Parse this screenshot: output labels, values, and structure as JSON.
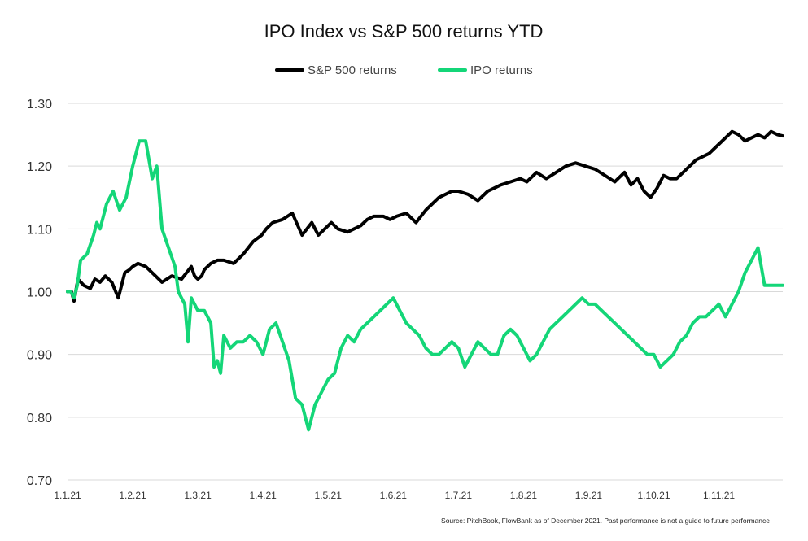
{
  "chart_data": {
    "type": "line",
    "title": "IPO Index vs S&P 500 returns YTD",
    "xlabel": "",
    "ylabel": "",
    "ylim": [
      0.7,
      1.3
    ],
    "y_ticks": [
      0.7,
      0.8,
      0.9,
      1.0,
      1.1,
      1.2,
      1.3
    ],
    "y_tick_labels": [
      "0.70",
      "0.80",
      "0.90",
      "1.00",
      "1.10",
      "1.20",
      "1.30"
    ],
    "x_tick_labels": [
      "1.1.21",
      "1.2.21",
      "1.3.21",
      "1.4.21",
      "1.5.21",
      "1.6.21",
      "1.7.21",
      "1.8.21",
      "1.9.21",
      "1.10.21",
      "1.11.21"
    ],
    "x_unit": "months since 1 Jan 2021",
    "xlim": [
      0,
      10.98
    ],
    "grid": true,
    "legend_position": "top-center",
    "series": [
      {
        "name": "S&P 500 returns",
        "color": "#000000",
        "x": [
          0,
          0.06,
          0.1,
          0.16,
          0.25,
          0.35,
          0.42,
          0.5,
          0.58,
          0.68,
          0.78,
          0.88,
          0.95,
          1.0,
          1.08,
          1.2,
          1.3,
          1.45,
          1.6,
          1.75,
          1.9,
          1.95,
          2.0,
          2.06,
          2.1,
          2.2,
          2.3,
          2.4,
          2.55,
          2.7,
          2.85,
          2.98,
          3.05,
          3.15,
          3.3,
          3.45,
          3.6,
          3.75,
          3.85,
          3.95,
          4.05,
          4.15,
          4.3,
          4.4,
          4.5,
          4.6,
          4.7,
          4.85,
          4.95,
          5.05,
          5.2,
          5.35,
          5.5,
          5.6,
          5.7,
          5.8,
          5.9,
          6.0,
          6.15,
          6.3,
          6.45,
          6.55,
          6.65,
          6.8,
          6.95,
          7.05,
          7.2,
          7.35,
          7.5,
          7.65,
          7.8,
          7.95,
          8.1,
          8.25,
          8.4,
          8.55,
          8.65,
          8.75,
          8.85,
          8.95,
          9.05,
          9.15,
          9.25,
          9.35,
          9.45,
          9.55,
          9.65,
          9.75,
          9.85,
          9.95,
          10.1,
          10.2,
          10.3,
          10.4,
          10.5,
          10.6,
          10.7,
          10.8,
          10.9,
          10.98
        ],
        "values": [
          1.0,
          1.0,
          0.985,
          1.02,
          1.01,
          1.005,
          1.02,
          1.015,
          1.025,
          1.015,
          0.99,
          1.03,
          1.035,
          1.04,
          1.045,
          1.04,
          1.03,
          1.015,
          1.025,
          1.02,
          1.04,
          1.025,
          1.02,
          1.025,
          1.035,
          1.045,
          1.05,
          1.05,
          1.045,
          1.06,
          1.08,
          1.09,
          1.1,
          1.11,
          1.115,
          1.125,
          1.09,
          1.11,
          1.09,
          1.1,
          1.11,
          1.1,
          1.095,
          1.1,
          1.105,
          1.115,
          1.12,
          1.12,
          1.115,
          1.12,
          1.125,
          1.11,
          1.13,
          1.14,
          1.15,
          1.155,
          1.16,
          1.16,
          1.155,
          1.145,
          1.16,
          1.165,
          1.17,
          1.175,
          1.18,
          1.175,
          1.19,
          1.18,
          1.19,
          1.2,
          1.205,
          1.2,
          1.195,
          1.185,
          1.175,
          1.19,
          1.17,
          1.18,
          1.16,
          1.15,
          1.165,
          1.185,
          1.18,
          1.18,
          1.19,
          1.2,
          1.21,
          1.215,
          1.22,
          1.23,
          1.245,
          1.255,
          1.25,
          1.24,
          1.245,
          1.25,
          1.245,
          1.255,
          1.25,
          1.248
        ]
      },
      {
        "name": "IPO returns",
        "color": "#14d678",
        "x": [
          0,
          0.05,
          0.1,
          0.15,
          0.2,
          0.3,
          0.4,
          0.45,
          0.5,
          0.6,
          0.7,
          0.8,
          0.9,
          1.0,
          1.1,
          1.2,
          1.3,
          1.37,
          1.45,
          1.55,
          1.65,
          1.7,
          1.8,
          1.85,
          1.9,
          1.95,
          2.0,
          2.1,
          2.2,
          2.25,
          2.3,
          2.35,
          2.4,
          2.5,
          2.6,
          2.7,
          2.8,
          2.9,
          3.0,
          3.1,
          3.2,
          3.3,
          3.4,
          3.5,
          3.6,
          3.7,
          3.8,
          3.9,
          4.0,
          4.1,
          4.2,
          4.3,
          4.4,
          4.5,
          4.6,
          4.7,
          4.8,
          4.9,
          5.0,
          5.1,
          5.2,
          5.3,
          5.4,
          5.5,
          5.6,
          5.7,
          5.8,
          5.9,
          6.0,
          6.1,
          6.2,
          6.3,
          6.4,
          6.5,
          6.6,
          6.7,
          6.8,
          6.9,
          7.0,
          7.1,
          7.2,
          7.3,
          7.4,
          7.5,
          7.6,
          7.7,
          7.8,
          7.9,
          8.0,
          8.1,
          8.2,
          8.3,
          8.4,
          8.5,
          8.6,
          8.7,
          8.8,
          8.9,
          9.0,
          9.1,
          9.2,
          9.3,
          9.4,
          9.5,
          9.6,
          9.7,
          9.8,
          9.9,
          10.0,
          10.1,
          10.2,
          10.3,
          10.4,
          10.5,
          10.6,
          10.7,
          10.8,
          10.9,
          10.98
        ],
        "values": [
          1.0,
          1.0,
          0.99,
          1.01,
          1.05,
          1.06,
          1.09,
          1.11,
          1.1,
          1.14,
          1.16,
          1.13,
          1.15,
          1.2,
          1.24,
          1.24,
          1.18,
          1.2,
          1.1,
          1.07,
          1.04,
          1.0,
          0.98,
          0.92,
          0.99,
          0.98,
          0.97,
          0.97,
          0.95,
          0.88,
          0.89,
          0.87,
          0.93,
          0.91,
          0.92,
          0.92,
          0.93,
          0.92,
          0.9,
          0.94,
          0.95,
          0.92,
          0.89,
          0.83,
          0.82,
          0.78,
          0.82,
          0.84,
          0.86,
          0.87,
          0.91,
          0.93,
          0.92,
          0.94,
          0.95,
          0.96,
          0.97,
          0.98,
          0.99,
          0.97,
          0.95,
          0.94,
          0.93,
          0.91,
          0.9,
          0.9,
          0.91,
          0.92,
          0.91,
          0.88,
          0.9,
          0.92,
          0.91,
          0.9,
          0.9,
          0.93,
          0.94,
          0.93,
          0.91,
          0.89,
          0.9,
          0.92,
          0.94,
          0.95,
          0.96,
          0.97,
          0.98,
          0.99,
          0.98,
          0.98,
          0.97,
          0.96,
          0.95,
          0.94,
          0.93,
          0.92,
          0.91,
          0.9,
          0.9,
          0.88,
          0.89,
          0.9,
          0.92,
          0.93,
          0.95,
          0.96,
          0.96,
          0.97,
          0.98,
          0.96,
          0.98,
          1.0,
          1.03,
          1.05,
          1.07,
          1.01,
          1.01,
          1.01,
          1.01
        ]
      }
    ],
    "source_note": "Source: PitchBook, FlowBank as of December 2021. Past performance is not a guide to future performance"
  }
}
